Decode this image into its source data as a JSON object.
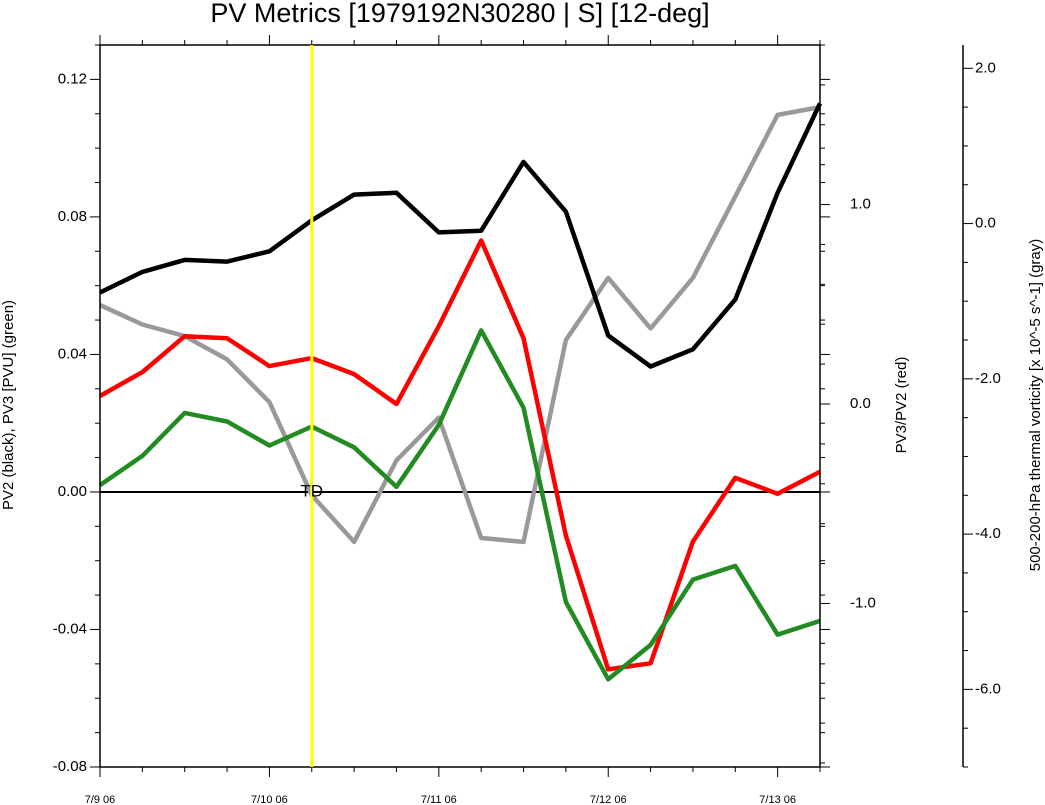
{
  "chart_data": {
    "type": "line",
    "title": "PV Metrics [1979192N30280 | S] [12-deg]",
    "x": [
      "7/9 06",
      "7/9 12",
      "7/9 18",
      "7/10 00",
      "7/10 06",
      "7/10 12",
      "7/10 18",
      "7/11 00",
      "7/11 06",
      "7/11 12",
      "7/11 18",
      "7/12 00",
      "7/12 06",
      "7/12 12",
      "7/12 18",
      "7/13 00",
      "7/13 06",
      "7/13 12"
    ],
    "x_tick_labels": [
      "7/9 06",
      "7/10 06",
      "7/11 06",
      "7/12 06",
      "7/13 06"
    ],
    "event_marker": {
      "x_index": 5,
      "label": "TD",
      "color": "#ffff00"
    },
    "left_axis": {
      "label": "PV2 (black), PV3 [PVU] (green)",
      "ylim": [
        -0.08,
        0.13
      ],
      "tick_labels": [
        "0.12",
        "0.08",
        "0.04",
        "0.00",
        "-0.04",
        "-0.08"
      ],
      "tick_values": [
        0.12,
        0.08,
        0.04,
        0.0,
        -0.04,
        -0.08
      ]
    },
    "right_axis": {
      "label": "PV3/PV2 (red)",
      "ylim": [
        -1.82,
        1.8
      ],
      "tick_labels": [
        "1.0",
        "0.0",
        "-1.0"
      ],
      "tick_values": [
        1.0,
        0.0,
        -1.0
      ]
    },
    "far_right_axis": {
      "label": "500-200-hPa thermal vorticity [x 10^-5 s^-1] (gray)",
      "ylim": [
        -7.0,
        2.3
      ],
      "tick_labels": [
        "2.0",
        "0.0",
        "-2.0",
        "-4.0",
        "-6.0"
      ],
      "tick_values": [
        2.0,
        0.0,
        -2.0,
        -4.0,
        -6.0
      ]
    },
    "series": [
      {
        "axis": "left",
        "color": "#000000",
        "values": [
          0.058,
          0.064,
          0.0675,
          0.067,
          0.07,
          0.079,
          0.0865,
          0.087,
          0.0755,
          0.076,
          0.096,
          0.0815,
          0.0455,
          0.0365,
          0.0415,
          0.056,
          0.087,
          0.113
        ]
      },
      {
        "axis": "left",
        "color": "#228b22",
        "values": [
          0.002,
          0.0105,
          0.023,
          0.0205,
          0.0135,
          0.019,
          0.013,
          0.0015,
          0.0195,
          0.047,
          0.0245,
          -0.032,
          -0.0545,
          -0.0445,
          -0.0255,
          -0.0215,
          -0.0415,
          -0.0375
        ]
      },
      {
        "axis": "right",
        "color": "#ff0000",
        "values": [
          0.04,
          0.16,
          0.34,
          0.33,
          0.19,
          0.23,
          0.15,
          0.0,
          0.39,
          0.82,
          0.33,
          -0.66,
          -1.33,
          -1.3,
          -0.69,
          -0.37,
          -0.45,
          -0.34
        ]
      },
      {
        "axis": "far_right",
        "color": "#999999",
        "values": [
          -1.05,
          -1.3,
          -1.45,
          -1.75,
          -2.3,
          -3.5,
          -4.1,
          -3.05,
          -2.5,
          -4.05,
          -4.1,
          -1.5,
          -0.7,
          -1.35,
          -0.7,
          0.35,
          1.4,
          1.5
        ]
      }
    ]
  }
}
